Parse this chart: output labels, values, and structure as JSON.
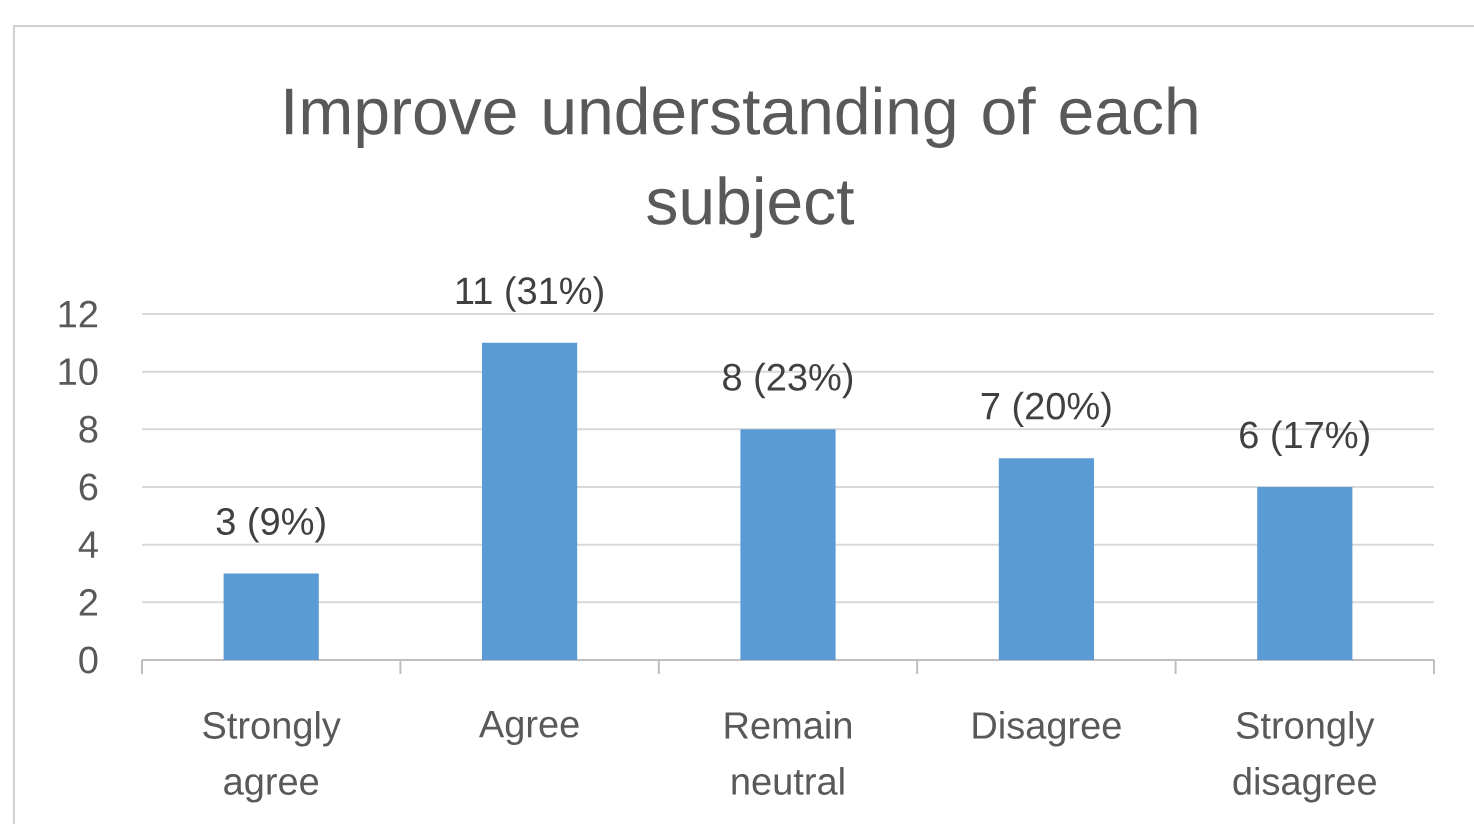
{
  "chart_data": {
    "type": "bar",
    "title": "Improve understanding of each subject",
    "categories": [
      "Strongly agree",
      "Agree",
      "Remain neutral",
      "Disagree",
      "Strongly disagree"
    ],
    "values": [
      3,
      11,
      8,
      7,
      6
    ],
    "color": "#5b9bd5",
    "value_labels": [
      "3 (9%)",
      "11 (31%)",
      "8 (23%)",
      "7 (20%)",
      "6 (17%)"
    ],
    "ylim": [
      0,
      12
    ],
    "yticks": [
      0,
      2,
      4,
      6,
      8,
      10,
      12
    ],
    "grid": "y"
  }
}
